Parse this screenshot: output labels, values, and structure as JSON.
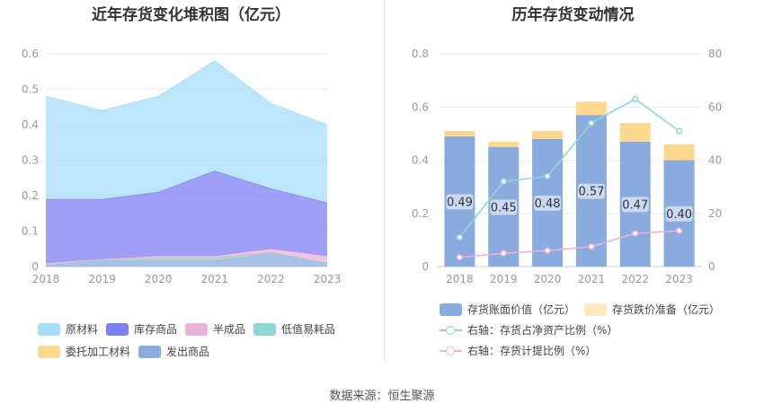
{
  "left_title": "近年存货变化堆积图（亿元）",
  "right_title": "历年存货变动情况",
  "source": "数据来源：恒生聚源",
  "left_legend": [
    {
      "label": "原材料",
      "color": "#a8defa"
    },
    {
      "label": "库存商品",
      "color": "#7f7ff2"
    },
    {
      "label": "半成品",
      "color": "#e9b3d8"
    },
    {
      "label": "低值易耗品",
      "color": "#8ed6d8"
    },
    {
      "label": "委托加工材料",
      "color": "#fdd88e"
    },
    {
      "label": "发出商品",
      "color": "#8aabde"
    }
  ],
  "right_legend": [
    {
      "label": "存货账面价值（亿元）",
      "color": "#8aabde"
    },
    {
      "label": "存货跌价准备（亿元）",
      "color": "#fde7bc"
    },
    {
      "label": "右轴：存货占净资产比例（%）",
      "color": "#8ed6d8"
    },
    {
      "label": "右轴：存货计提比例（%）",
      "color": "#e9b3d8"
    }
  ],
  "chart_data": [
    {
      "type": "area",
      "stacked": true,
      "title": "近年存货变化堆积图（亿元）",
      "categories": [
        "2018",
        "2019",
        "2020",
        "2021",
        "2022",
        "2023"
      ],
      "ylim": [
        0,
        0.6
      ],
      "yticks": [
        "0",
        "0.1",
        "0.2",
        "0.3",
        "0.4",
        "0.5",
        "0.6"
      ],
      "series": [
        {
          "name": "发出商品",
          "values": [
            0.005,
            0.02,
            0.02,
            0.02,
            0.04,
            0.01
          ]
        },
        {
          "name": "委托加工材料",
          "values": [
            0,
            0,
            0,
            0,
            0,
            0
          ]
        },
        {
          "name": "低值易耗品",
          "values": [
            0,
            0,
            0.005,
            0.005,
            0,
            0
          ]
        },
        {
          "name": "半成品",
          "values": [
            0.005,
            0.002,
            0.005,
            0.005,
            0.01,
            0.02
          ]
        },
        {
          "name": "库存商品",
          "values": [
            0.18,
            0.168,
            0.18,
            0.24,
            0.17,
            0.15
          ]
        },
        {
          "name": "原材料",
          "values": [
            0.29,
            0.25,
            0.27,
            0.31,
            0.24,
            0.22
          ]
        }
      ]
    },
    {
      "type": "bar",
      "stacked": true,
      "title": "历年存货变动情况",
      "categories": [
        "2018",
        "2019",
        "2020",
        "2021",
        "2022",
        "2023"
      ],
      "ylim": [
        0,
        0.8
      ],
      "yticks": [
        "0",
        "0.2",
        "0.4",
        "0.6",
        "0.8"
      ],
      "y2lim": [
        0,
        80
      ],
      "y2ticks": [
        "0",
        "20",
        "40",
        "60",
        "80"
      ],
      "series": [
        {
          "name": "存货账面价值（亿元）",
          "values": [
            0.49,
            0.45,
            0.48,
            0.57,
            0.47,
            0.4
          ],
          "labels": [
            "0.49",
            "0.45",
            "0.48",
            "0.57",
            "0.47",
            "0.40"
          ]
        },
        {
          "name": "存货跌价准备（亿元）",
          "values": [
            0.02,
            0.02,
            0.03,
            0.05,
            0.07,
            0.06
          ]
        }
      ],
      "lines": [
        {
          "name": "右轴：存货占净资产比例（%）",
          "values": [
            11,
            32,
            34,
            54,
            63,
            51
          ]
        },
        {
          "name": "右轴：存货计提比例（%）",
          "values": [
            3.5,
            5,
            6,
            7.5,
            12.5,
            13.5
          ]
        }
      ]
    }
  ]
}
